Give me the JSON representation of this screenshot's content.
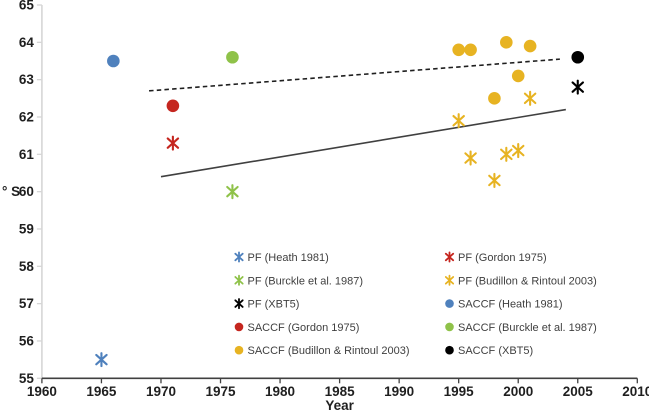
{
  "figure": {
    "background": "#ffffff"
  },
  "chart_data": {
    "type": "scatter",
    "title": "",
    "xlabel": "Year",
    "ylabel": "° S",
    "xlim": [
      1960,
      2010
    ],
    "ylim": [
      55,
      65
    ],
    "xticks": [
      1960,
      1965,
      1970,
      1975,
      1980,
      1985,
      1990,
      1995,
      2000,
      2005,
      2010
    ],
    "yticks": [
      55,
      56,
      57,
      58,
      59,
      60,
      61,
      62,
      63,
      64,
      65
    ],
    "grid": false,
    "legend_position": "inside-bottom-center, two columns",
    "axis_colors": {
      "y_axis": "#d6d6d6",
      "x_axis": "#404040",
      "tick_text": "#1f1f1f",
      "legend_text": "#3f3f3f"
    },
    "series": [
      {
        "name": "PF (Heath 1981)",
        "marker": "asterisk",
        "color": "#4F81BD",
        "points": [
          [
            1965,
            55.5
          ]
        ]
      },
      {
        "name": "PF (Gordon 1975)",
        "marker": "asterisk",
        "color": "#C5261F",
        "points": [
          [
            1971,
            61.3
          ]
        ]
      },
      {
        "name": "PF (Burckle et al. 1987)",
        "marker": "asterisk",
        "color": "#8FC249",
        "points": [
          [
            1976,
            60.0
          ]
        ]
      },
      {
        "name": "PF (Budillon & Rintoul 2003)",
        "marker": "asterisk",
        "color": "#E7B322",
        "points": [
          [
            1995,
            61.9
          ],
          [
            1996,
            60.9
          ],
          [
            1998,
            60.3
          ],
          [
            1999,
            61.0
          ],
          [
            2000,
            61.1
          ],
          [
            2001,
            62.5
          ]
        ]
      },
      {
        "name": "PF (XBT5)",
        "marker": "asterisk",
        "color": "#000000",
        "points": [
          [
            2005,
            62.8
          ]
        ]
      },
      {
        "name": "SACCF (Heath 1981)",
        "marker": "circle",
        "color": "#4F81BD",
        "points": [
          [
            1966,
            63.5
          ]
        ]
      },
      {
        "name": "SACCF (Gordon 1975)",
        "marker": "circle",
        "color": "#C5261F",
        "points": [
          [
            1971,
            62.3
          ]
        ]
      },
      {
        "name": "SACCF (Burckle et al. 1987)",
        "marker": "circle",
        "color": "#8FC249",
        "points": [
          [
            1976,
            63.6
          ]
        ]
      },
      {
        "name": "SACCF (Budillon & Rintoul 2003)",
        "marker": "circle",
        "color": "#E7B322",
        "points": [
          [
            1995,
            63.8
          ],
          [
            1996,
            63.8
          ],
          [
            1998,
            62.5
          ],
          [
            1999,
            64.0
          ],
          [
            2000,
            63.1
          ],
          [
            2001,
            63.9
          ]
        ]
      },
      {
        "name": "SACCF (XBT5)",
        "marker": "circle",
        "color": "#000000",
        "points": [
          [
            2005,
            63.6
          ]
        ]
      }
    ],
    "trendlines": [
      {
        "name": "saccf-trend",
        "style": "dashed",
        "color": "#1f1f1f",
        "x1": 1969,
        "y1": 62.7,
        "x2": 2003.5,
        "y2": 63.55
      },
      {
        "name": "pf-trend",
        "style": "solid",
        "color": "#404040",
        "x1": 1970,
        "y1": 60.4,
        "x2": 2004,
        "y2": 62.2
      }
    ],
    "legend": {
      "columns": [
        [
          0,
          2,
          4,
          6,
          8
        ],
        [
          1,
          3,
          5,
          7,
          9
        ]
      ]
    }
  }
}
